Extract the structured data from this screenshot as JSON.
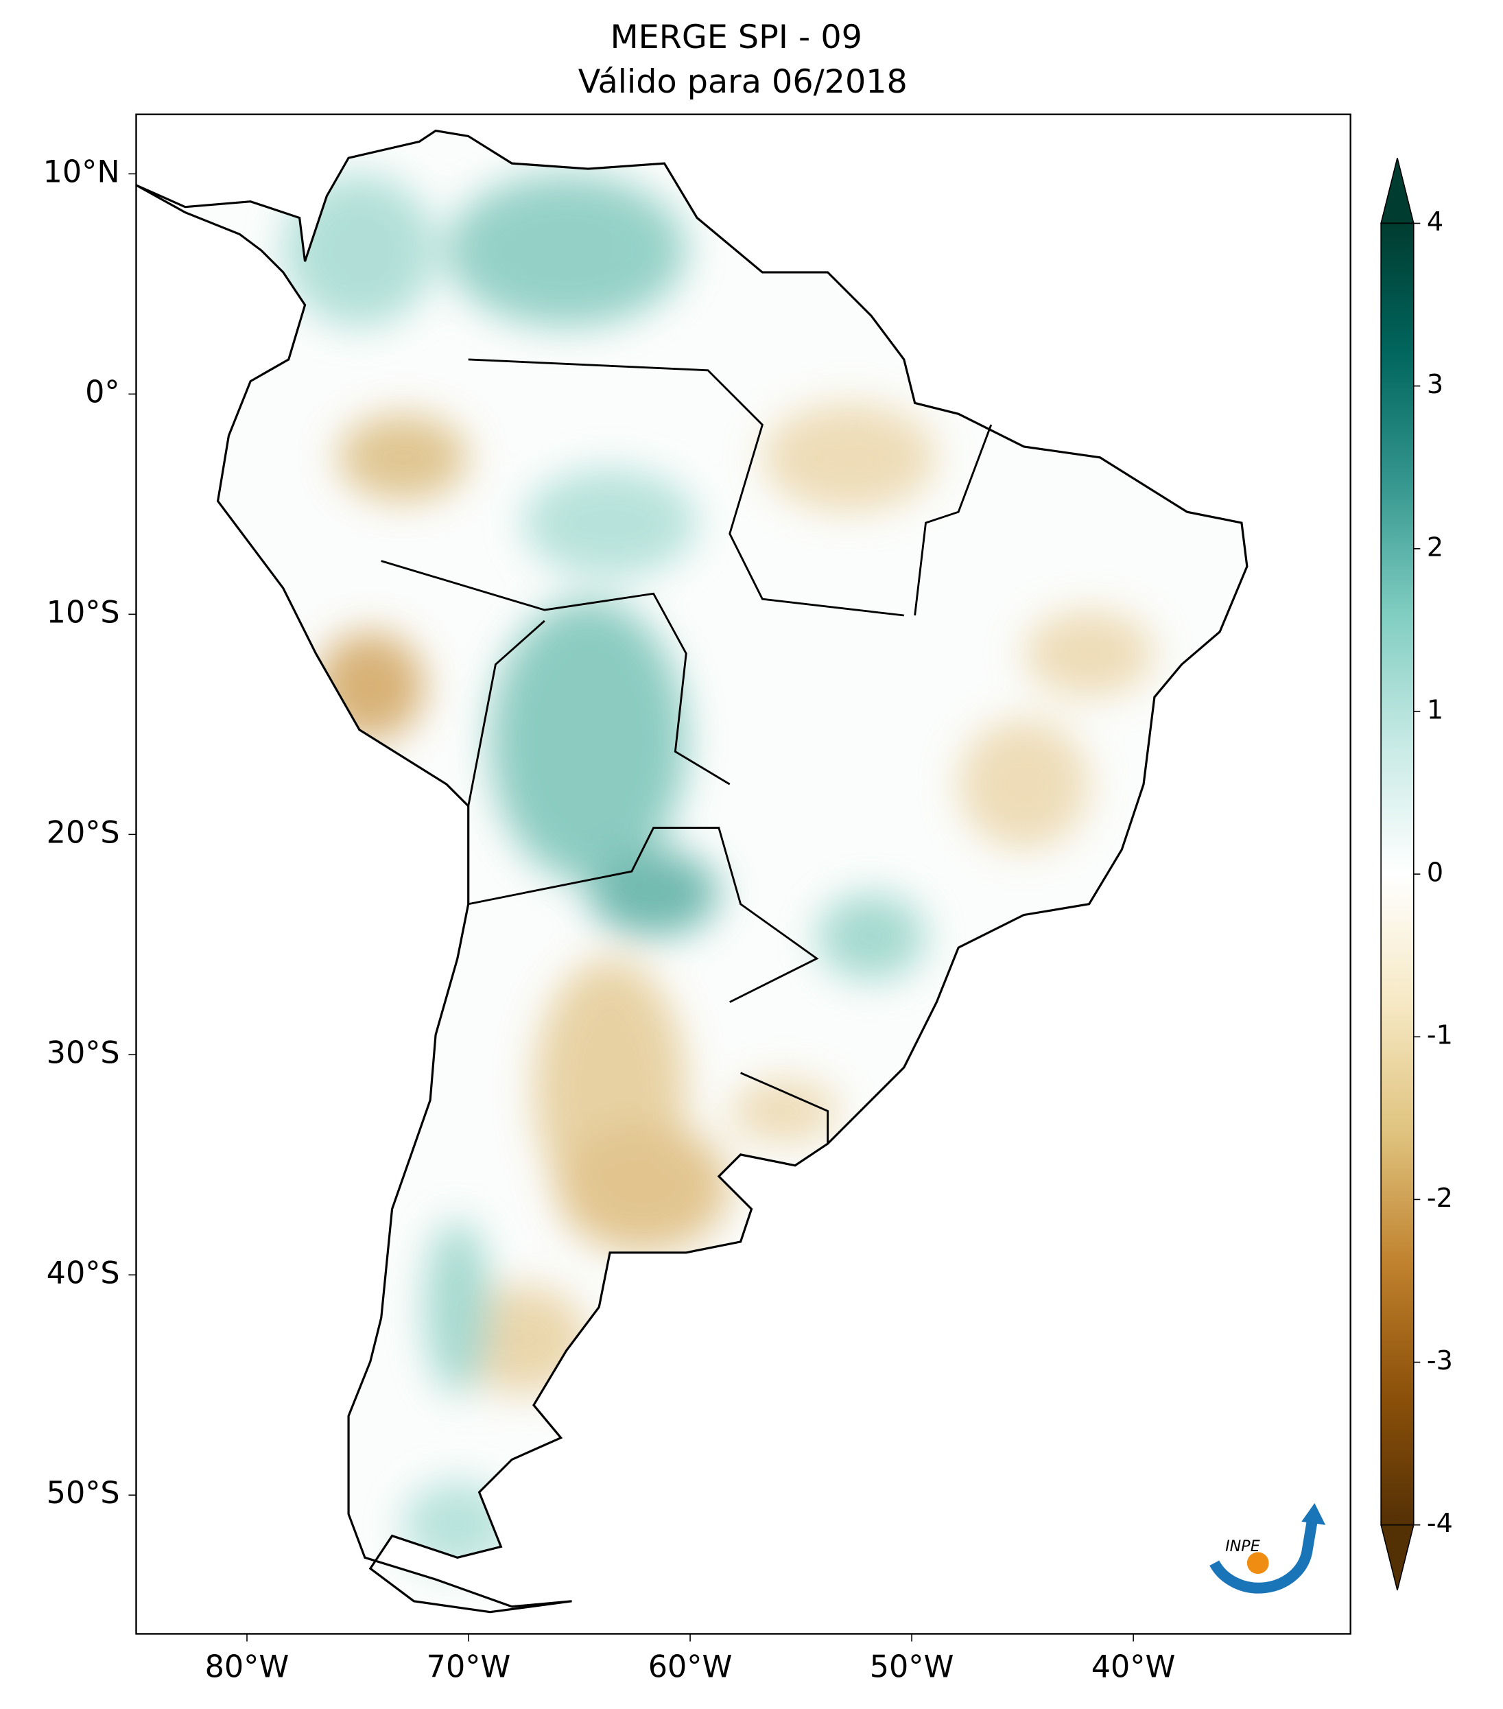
{
  "title": [
    "MERGE   SPI - 09",
    "Válido para 06/2018"
  ],
  "map": {
    "xlim": [
      -85,
      -30.2
    ],
    "ylim": [
      -56.3,
      12.7
    ],
    "xticks": [
      {
        "value": -80,
        "label": "80°W"
      },
      {
        "value": -70,
        "label": "70°W"
      },
      {
        "value": -60,
        "label": "60°W"
      },
      {
        "value": -50,
        "label": "50°W"
      },
      {
        "value": -40,
        "label": "40°W"
      }
    ],
    "yticks": [
      {
        "value": 10,
        "label": "10°N"
      },
      {
        "value": 0,
        "label": "0°"
      },
      {
        "value": -10,
        "label": "10°S"
      },
      {
        "value": -20,
        "label": "20°S"
      },
      {
        "value": -30,
        "label": "30°S"
      },
      {
        "value": -40,
        "label": "40°S"
      },
      {
        "value": -50,
        "label": "50°S"
      }
    ]
  },
  "colorbar": {
    "lim": [
      -4,
      4
    ],
    "ticks": [
      -4,
      -3,
      -2,
      -1,
      0,
      1,
      2,
      3,
      4
    ],
    "colors": [
      "#543005",
      "#8c510a",
      "#bf812d",
      "#dfc27d",
      "#f6e8c3",
      "#ffffff",
      "#c7eae5",
      "#80cdc1",
      "#35978f",
      "#01665e",
      "#003c30"
    ]
  },
  "logo": "INPE"
}
